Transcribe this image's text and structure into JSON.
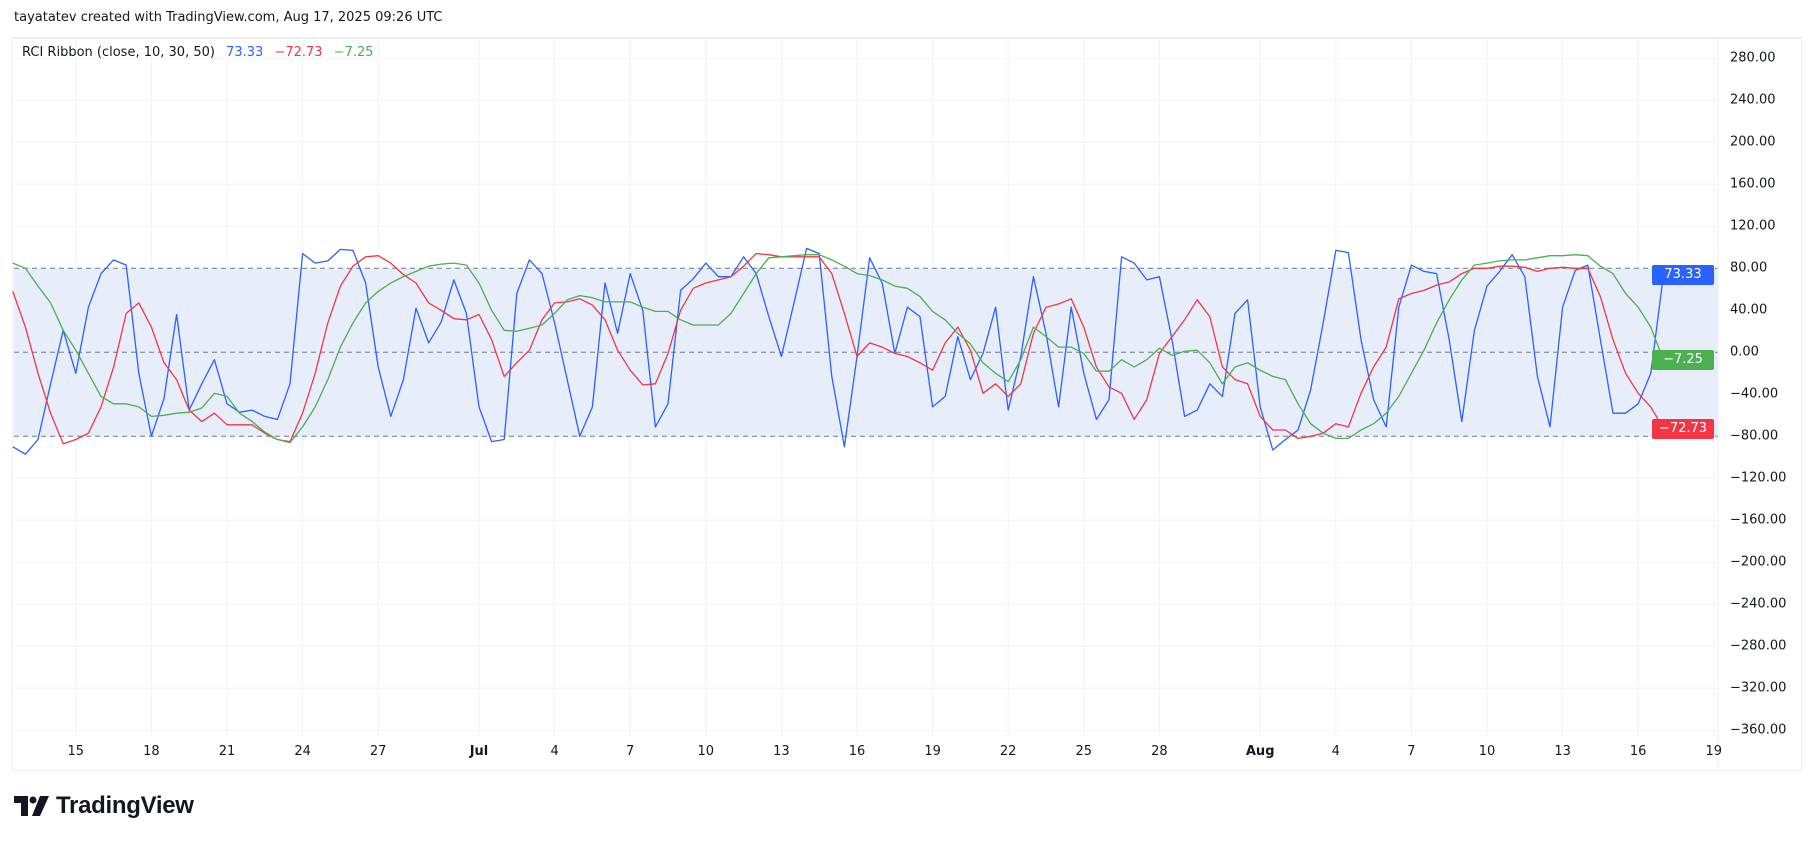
{
  "attribution": "tayatatev created with TradingView.com, Aug 17, 2025 09:26 UTC",
  "legend": {
    "title": "RCI Ribbon (close, 10, 30, 50)",
    "v1": "73.33",
    "v2": "−72.73",
    "v3": "−7.25"
  },
  "logo": {
    "text": "TradingView"
  },
  "colors": {
    "fast": "#2962ff",
    "mid": "#f23645",
    "slow": "#4caf50",
    "band": "#e8edfc",
    "grid": "#f0f3fa",
    "dashed": "#787b86"
  },
  "chart_data": {
    "type": "line",
    "title": "RCI Ribbon (close, 10, 30, 50)",
    "xlabel": "",
    "ylabel": "",
    "ylim": [
      -380,
      300
    ],
    "grid": true,
    "x_start": "2025-06-12T12:00",
    "x_interval": "12h",
    "band": {
      "upper": 80,
      "middle": 0,
      "lower": -80
    },
    "y_ticks": [
      "280.00",
      "240.00",
      "200.00",
      "160.00",
      "120.00",
      "80.00",
      "40.00",
      "0.00",
      "−40.00",
      "−80.00",
      "−120.00",
      "−160.00",
      "−200.00",
      "−240.00",
      "−280.00",
      "−320.00",
      "−360.00"
    ],
    "y_tick_values": [
      280,
      240,
      200,
      160,
      120,
      80,
      40,
      0,
      -40,
      -80,
      -120,
      -160,
      -200,
      -240,
      -280,
      -320,
      -360
    ],
    "x_ticks": [
      {
        "label": "15",
        "date": "2025-06-15"
      },
      {
        "label": "18",
        "date": "2025-06-18"
      },
      {
        "label": "21",
        "date": "2025-06-21"
      },
      {
        "label": "24",
        "date": "2025-06-24"
      },
      {
        "label": "27",
        "date": "2025-06-27"
      },
      {
        "label": "Jul",
        "date": "2025-07-01",
        "major": true
      },
      {
        "label": "4",
        "date": "2025-07-04"
      },
      {
        "label": "7",
        "date": "2025-07-07"
      },
      {
        "label": "10",
        "date": "2025-07-10"
      },
      {
        "label": "13",
        "date": "2025-07-13"
      },
      {
        "label": "16",
        "date": "2025-07-16"
      },
      {
        "label": "19",
        "date": "2025-07-19"
      },
      {
        "label": "22",
        "date": "2025-07-22"
      },
      {
        "label": "25",
        "date": "2025-07-25"
      },
      {
        "label": "28",
        "date": "2025-07-28"
      },
      {
        "label": "Aug",
        "date": "2025-08-01",
        "major": true
      },
      {
        "label": "4",
        "date": "2025-08-04"
      },
      {
        "label": "7",
        "date": "2025-08-07"
      },
      {
        "label": "10",
        "date": "2025-08-10"
      },
      {
        "label": "13",
        "date": "2025-08-13"
      },
      {
        "label": "16",
        "date": "2025-08-16"
      },
      {
        "label": "19",
        "date": "2025-08-19"
      }
    ],
    "series": [
      {
        "key": "fast",
        "last_label": "73.33",
        "values": [
          -90,
          -97,
          -83,
          -30,
          21,
          -20,
          43,
          75,
          88,
          83,
          -20,
          -80,
          -44,
          36,
          -55,
          -30,
          -7,
          -49,
          -57,
          -55,
          -61,
          -64,
          -30,
          94,
          85,
          87,
          98,
          97,
          66,
          -14,
          -61,
          -26,
          42,
          9,
          29,
          69,
          37,
          -52,
          -85,
          -83,
          56,
          88,
          75,
          28,
          -26,
          -80,
          -52,
          66,
          18,
          75,
          40,
          -71,
          -49,
          59,
          70,
          85,
          72,
          72,
          91,
          75,
          34,
          -4,
          47,
          99,
          94,
          -23,
          -90,
          -4,
          90,
          66,
          -1,
          43,
          34,
          -52,
          -42,
          15,
          -26,
          -1,
          43,
          -55,
          -4,
          72,
          18,
          -52,
          43,
          -20,
          -64,
          -45,
          91,
          85,
          69,
          72,
          12,
          -61,
          -55,
          -30,
          -42,
          37,
          50,
          -52,
          -93,
          -83,
          -74,
          -36,
          28,
          97,
          95,
          12,
          -45,
          -71,
          43,
          83,
          77,
          75,
          12,
          -66,
          21,
          63,
          77,
          93,
          72,
          -23,
          -71,
          43,
          78,
          83,
          12,
          -58,
          -58,
          -49,
          -20,
          73.33
        ]
      },
      {
        "key": "mid",
        "last_label": "−72.73",
        "values": [
          58,
          24,
          -20,
          -58,
          -87,
          -83,
          -77,
          -52,
          -14,
          37,
          47,
          24,
          -10,
          -26,
          -55,
          -66,
          -58,
          -69,
          -69,
          -69,
          -77,
          -83,
          -85,
          -58,
          -20,
          28,
          63,
          82,
          91,
          92,
          85,
          74,
          66,
          47,
          40,
          32,
          31,
          36,
          12,
          -23,
          -10,
          2,
          31,
          47,
          48,
          51,
          45,
          31,
          2,
          -17,
          -31,
          -30,
          -1,
          40,
          61,
          66,
          69,
          72,
          82,
          94,
          93,
          91,
          91,
          91,
          91,
          75,
          37,
          -4,
          9,
          5,
          -1,
          -4,
          -10,
          -17,
          9,
          24,
          2,
          -39,
          -30,
          -42,
          -30,
          18,
          43,
          46,
          51,
          24,
          -14,
          -33,
          -39,
          -64,
          -45,
          -1,
          15,
          31,
          50,
          34,
          -14,
          -26,
          -30,
          -61,
          -74,
          -74,
          -82,
          -80,
          -77,
          -68,
          -71,
          -39,
          -14,
          5,
          51,
          56,
          59,
          64,
          67,
          75,
          80,
          80,
          82,
          82,
          81,
          77,
          80,
          81,
          80,
          80,
          53,
          12,
          -20,
          -39,
          -52,
          -72.73
        ]
      },
      {
        "key": "slow",
        "last_label": "−7.25",
        "values": [
          85,
          80,
          63,
          47,
          21,
          2,
          -20,
          -42,
          -49,
          -49,
          -52,
          -61,
          -60,
          -58,
          -57,
          -53,
          -39,
          -42,
          -58,
          -66,
          -76,
          -83,
          -86,
          -71,
          -52,
          -26,
          5,
          28,
          47,
          58,
          66,
          72,
          77,
          82,
          84,
          85,
          83,
          66,
          40,
          21,
          20,
          23,
          26,
          37,
          50,
          54,
          52,
          48,
          48,
          48,
          43,
          39,
          39,
          31,
          26,
          26,
          26,
          37,
          56,
          75,
          90,
          91,
          92,
          93,
          93,
          88,
          82,
          75,
          73,
          69,
          63,
          61,
          53,
          39,
          31,
          18,
          8,
          -10,
          -20,
          -28,
          -7,
          24,
          15,
          5,
          5,
          -1,
          -18,
          -18,
          -7,
          -14,
          -7,
          4,
          -3,
          1,
          2,
          -10,
          -30,
          -14,
          -10,
          -17,
          -23,
          -26,
          -49,
          -68,
          -77,
          -82,
          -82,
          -74,
          -68,
          -58,
          -42,
          -20,
          2,
          28,
          50,
          69,
          83,
          85,
          87,
          88,
          88,
          90,
          92,
          92,
          93,
          92,
          82,
          75,
          56,
          43,
          24,
          -7.25
        ]
      }
    ]
  }
}
